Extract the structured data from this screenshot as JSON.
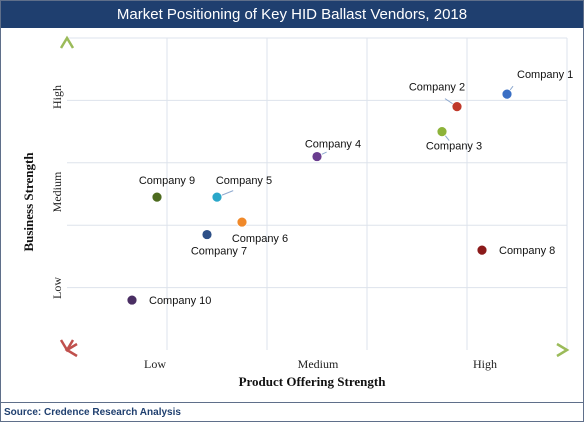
{
  "title": "Market Positioning of Key HID Ballast Vendors, 2018",
  "source": "Source: Credence Research Analysis",
  "chart_data": {
    "type": "scatter",
    "xlabel": "Product Offering Strength",
    "ylabel": "Business Strength",
    "x_ticks": [
      "Low",
      "Medium",
      "High"
    ],
    "y_ticks": [
      "Low",
      "Medium",
      "High"
    ],
    "xlim": [
      0,
      10
    ],
    "ylim": [
      0,
      10
    ],
    "grid": true,
    "points": [
      {
        "name": "Company 1",
        "x": 8.8,
        "y": 8.2,
        "color": "#3a6fc4"
      },
      {
        "name": "Company 2",
        "x": 7.8,
        "y": 7.8,
        "color": "#c0392b"
      },
      {
        "name": "Company 3",
        "x": 7.5,
        "y": 7.0,
        "color": "#8db33a"
      },
      {
        "name": "Company 4",
        "x": 5.0,
        "y": 6.2,
        "color": "#6a3d8f"
      },
      {
        "name": "Company 5",
        "x": 3.0,
        "y": 4.9,
        "color": "#2aa7c9"
      },
      {
        "name": "Company 6",
        "x": 3.5,
        "y": 4.1,
        "color": "#f0892a"
      },
      {
        "name": "Company 7",
        "x": 2.8,
        "y": 3.7,
        "color": "#2d4f87"
      },
      {
        "name": "Company 8",
        "x": 8.3,
        "y": 3.2,
        "color": "#8b1a1a"
      },
      {
        "name": "Company 9",
        "x": 1.8,
        "y": 4.9,
        "color": "#4d6b1f"
      },
      {
        "name": "Company 10",
        "x": 1.3,
        "y": 1.6,
        "color": "#4a2e63"
      }
    ]
  }
}
